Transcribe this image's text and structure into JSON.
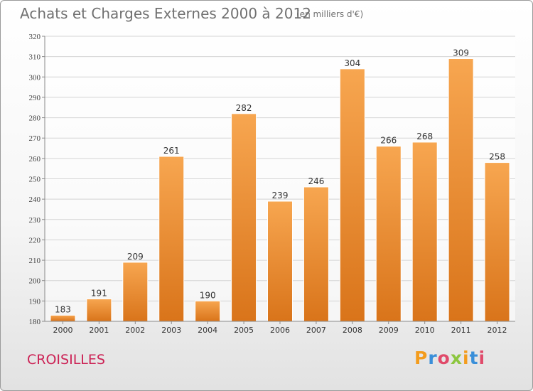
{
  "header": {
    "title": "Achats et Charges Externes 2000 à 2012",
    "subtitle": "(en milliers d'€)"
  },
  "footer": {
    "location": "CROISILLES",
    "logo_text": "Proxiti",
    "logo_colors": [
      "#f39c1d",
      "#3a8fd9",
      "#e04a6a",
      "#8cc63f",
      "#f39c1d",
      "#3a8fd9",
      "#e04a6a"
    ]
  },
  "chart_data": {
    "type": "bar",
    "title": "Achats et Charges Externes 2000 à 2012",
    "subtitle": "(en milliers d'€)",
    "categories": [
      "2000",
      "2001",
      "2002",
      "2003",
      "2004",
      "2005",
      "2006",
      "2007",
      "2008",
      "2009",
      "2010",
      "2011",
      "2012"
    ],
    "values": [
      183,
      191,
      209,
      261,
      190,
      282,
      239,
      246,
      304,
      266,
      268,
      309,
      258
    ],
    "ylim": [
      180,
      320
    ],
    "yticks": [
      180,
      190,
      200,
      210,
      220,
      230,
      240,
      250,
      260,
      270,
      280,
      290,
      300,
      310,
      320
    ],
    "grid": true,
    "legend": "none",
    "bar_color": "#f0922e"
  }
}
